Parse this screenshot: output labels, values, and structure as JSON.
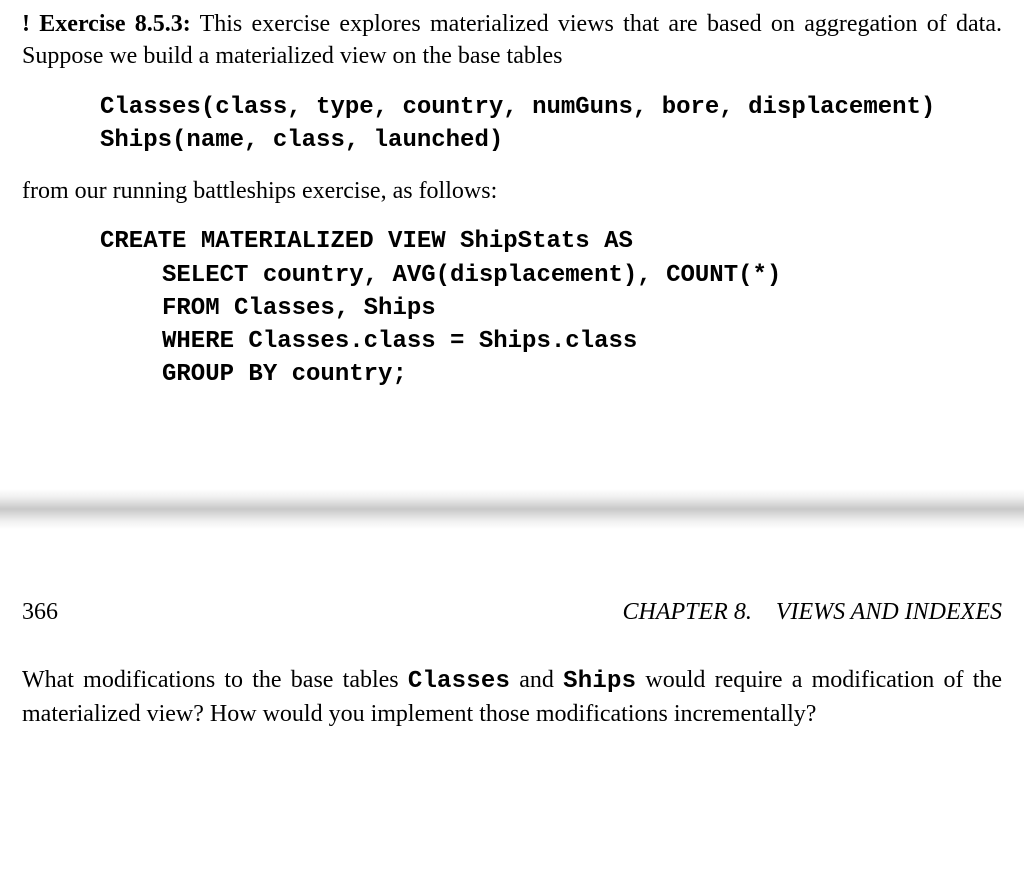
{
  "doc": {
    "font_family_body": "Georgia, Times New Roman, serif",
    "font_family_code": "Courier New, monospace",
    "font_size_pt": 18,
    "line_height": 1.35,
    "text_color": "#000000",
    "background_color": "#ffffff",
    "page_break_gradient": [
      "#ffffff",
      "#f0f0f0",
      "#c8c8c8",
      "#f0f0f0",
      "#ffffff"
    ]
  },
  "exercise": {
    "bang": "!",
    "label": "Exercise 8.5.3:",
    "intro_a": " This exercise explores materialized views that are based on aggregation of data. Suppose we build a materialized view on the base tables",
    "schema": {
      "line1": "Classes(class, type, country, numGuns, bore, displacement)",
      "line2": "Ships(name, class, launched)"
    },
    "mid": "from our running battleships exercise, as follows:",
    "sql": {
      "l1": "CREATE MATERIALIZED VIEW ShipStats AS",
      "l2": "SELECT country, AVG(displacement), COUNT(*)",
      "l3": "FROM Classes, Ships",
      "l4": "WHERE Classes.class = Ships.class",
      "l5": "GROUP BY country;"
    }
  },
  "footer": {
    "page_number": "366",
    "chapter_label": "CHAPTER 8.",
    "chapter_title": "VIEWS AND INDEXES"
  },
  "question": {
    "part1": "What modifications to the base tables ",
    "class_name_1": "Classes",
    "part2": " and ",
    "class_name_2": "Ships",
    "part3": " would require a modification of the materialized view? How would you implement those modifications incrementally?"
  }
}
